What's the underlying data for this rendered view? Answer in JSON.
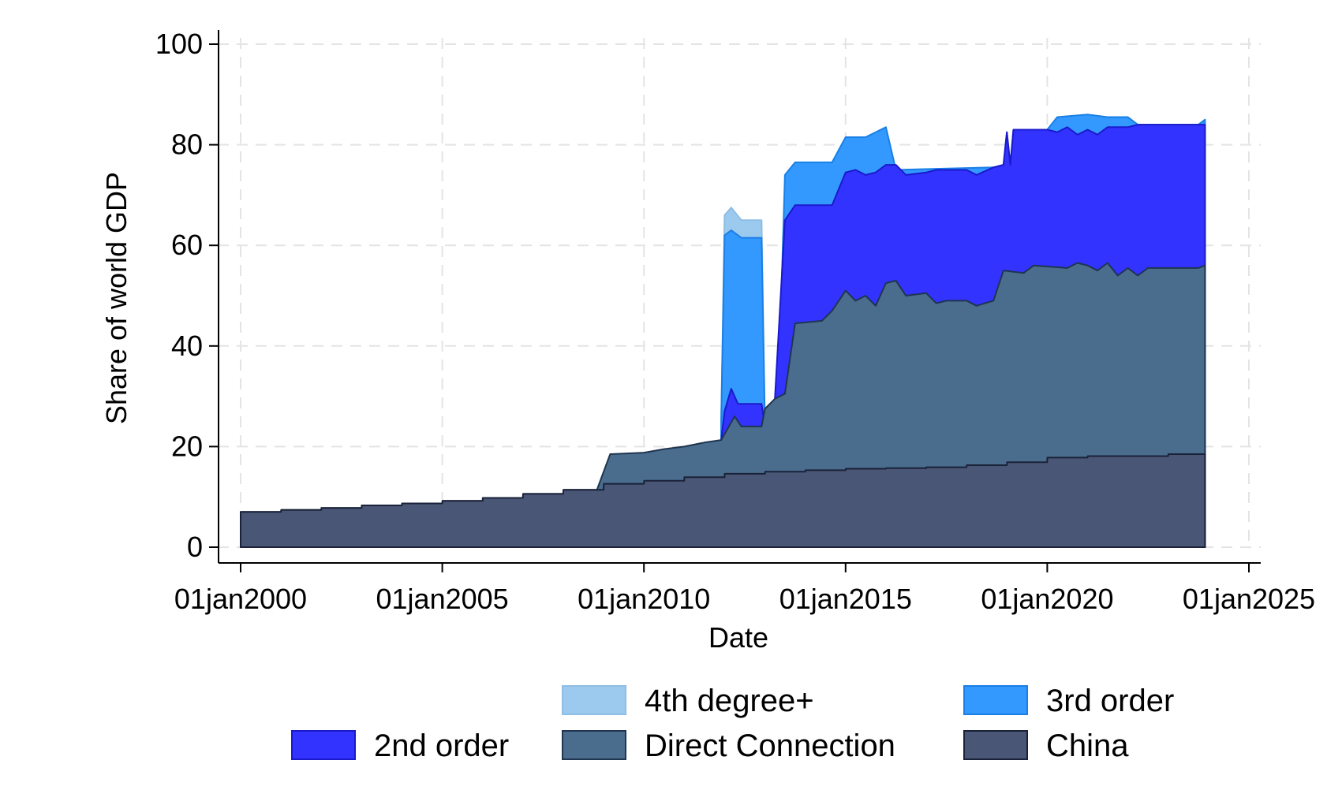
{
  "chart_data": {
    "type": "area",
    "stacked": true,
    "xlabel": "Date",
    "ylabel": "Share of world GDP",
    "xlim": [
      "1999-12-01",
      "2025-01-01"
    ],
    "ylim": [
      0,
      100
    ],
    "x_ticks": [
      "01jan2000",
      "01jan2005",
      "01jan2010",
      "01jan2015",
      "01jan2020",
      "01jan2025"
    ],
    "y_ticks": [
      "0",
      "20",
      "40",
      "60",
      "80",
      "100"
    ],
    "grid": true,
    "legend_position": "bottom",
    "colors": {
      "china": "#4a5675",
      "direct": "#4a6d8e",
      "second": "#3333ff",
      "third": "#3399ff",
      "fourth": "#9ccaee"
    },
    "series": [
      {
        "name": "China",
        "key": "china",
        "points": [
          [
            "2000-01-01",
            7.0
          ],
          [
            "2001-01-01",
            7.0
          ],
          [
            "2001-01-02",
            7.4
          ],
          [
            "2002-01-01",
            7.4
          ],
          [
            "2002-01-02",
            7.8
          ],
          [
            "2003-01-01",
            7.8
          ],
          [
            "2003-01-02",
            8.3
          ],
          [
            "2004-01-01",
            8.3
          ],
          [
            "2004-01-02",
            8.7
          ],
          [
            "2005-01-01",
            8.7
          ],
          [
            "2005-01-02",
            9.2
          ],
          [
            "2006-01-01",
            9.2
          ],
          [
            "2006-01-02",
            9.8
          ],
          [
            "2007-01-01",
            9.8
          ],
          [
            "2007-01-02",
            10.6
          ],
          [
            "2008-01-01",
            10.6
          ],
          [
            "2008-01-02",
            11.4
          ],
          [
            "2009-01-01",
            11.4
          ],
          [
            "2009-01-02",
            12.6
          ],
          [
            "2010-01-01",
            12.6
          ],
          [
            "2010-01-02",
            13.2
          ],
          [
            "2011-01-01",
            13.2
          ],
          [
            "2011-01-02",
            13.9
          ],
          [
            "2012-01-01",
            13.9
          ],
          [
            "2012-01-02",
            14.6
          ],
          [
            "2013-01-01",
            14.6
          ],
          [
            "2013-01-02",
            15.0
          ],
          [
            "2014-01-01",
            15.0
          ],
          [
            "2014-01-02",
            15.3
          ],
          [
            "2015-01-01",
            15.3
          ],
          [
            "2015-01-02",
            15.6
          ],
          [
            "2016-01-01",
            15.6
          ],
          [
            "2016-01-02",
            15.7
          ],
          [
            "2017-01-01",
            15.7
          ],
          [
            "2017-01-02",
            15.9
          ],
          [
            "2018-01-01",
            15.9
          ],
          [
            "2018-01-02",
            16.3
          ],
          [
            "2019-01-01",
            16.3
          ],
          [
            "2019-01-02",
            16.9
          ],
          [
            "2020-01-01",
            16.9
          ],
          [
            "2020-01-02",
            17.8
          ],
          [
            "2021-01-01",
            17.8
          ],
          [
            "2021-01-02",
            18.1
          ],
          [
            "2022-01-01",
            18.1
          ],
          [
            "2022-01-02",
            18.1
          ],
          [
            "2023-01-01",
            18.1
          ],
          [
            "2023-01-02",
            18.5
          ],
          [
            "2023-12-01",
            18.5
          ]
        ]
      },
      {
        "name": "Direct Connection",
        "key": "direct",
        "points": [
          [
            "2000-01-01",
            7.0
          ],
          [
            "2001-01-01",
            7.0
          ],
          [
            "2001-01-02",
            7.4
          ],
          [
            "2002-01-01",
            7.4
          ],
          [
            "2002-01-02",
            7.8
          ],
          [
            "2003-01-01",
            7.8
          ],
          [
            "2003-01-02",
            8.3
          ],
          [
            "2004-01-01",
            8.3
          ],
          [
            "2004-01-02",
            8.7
          ],
          [
            "2005-01-01",
            8.7
          ],
          [
            "2005-01-02",
            9.2
          ],
          [
            "2006-01-01",
            9.2
          ],
          [
            "2006-01-02",
            9.8
          ],
          [
            "2007-01-01",
            9.8
          ],
          [
            "2007-01-02",
            10.6
          ],
          [
            "2008-01-01",
            10.6
          ],
          [
            "2008-01-02",
            11.4
          ],
          [
            "2008-11-01",
            11.4
          ],
          [
            "2009-01-01",
            15.0
          ],
          [
            "2009-03-01",
            18.5
          ],
          [
            "2010-01-01",
            18.8
          ],
          [
            "2010-07-01",
            19.5
          ],
          [
            "2011-01-01",
            20.0
          ],
          [
            "2011-07-01",
            20.8
          ],
          [
            "2011-12-01",
            21.3
          ],
          [
            "2012-04-01",
            26.0
          ],
          [
            "2012-06-01",
            24.0
          ],
          [
            "2012-12-01",
            24.0
          ],
          [
            "2013-01-01",
            27.5
          ],
          [
            "2013-04-01",
            29.5
          ],
          [
            "2013-07-01",
            30.5
          ],
          [
            "2013-10-01",
            44.5
          ],
          [
            "2014-06-01",
            45.0
          ],
          [
            "2014-09-01",
            47.0
          ],
          [
            "2015-01-01",
            51.0
          ],
          [
            "2015-04-01",
            49.0
          ],
          [
            "2015-07-01",
            50.0
          ],
          [
            "2015-10-01",
            48.0
          ],
          [
            "2016-01-01",
            52.5
          ],
          [
            "2016-04-01",
            53.0
          ],
          [
            "2016-07-01",
            50.0
          ],
          [
            "2017-01-01",
            50.5
          ],
          [
            "2017-04-01",
            48.5
          ],
          [
            "2017-07-01",
            49.0
          ],
          [
            "2018-01-01",
            49.0
          ],
          [
            "2018-04-01",
            48.0
          ],
          [
            "2018-09-01",
            49.0
          ],
          [
            "2018-12-01",
            55.0
          ],
          [
            "2019-06-01",
            54.5
          ],
          [
            "2019-09-01",
            56.0
          ],
          [
            "2020-07-01",
            55.5
          ],
          [
            "2020-10-01",
            56.5
          ],
          [
            "2021-01-01",
            56.0
          ],
          [
            "2021-04-01",
            55.0
          ],
          [
            "2021-07-01",
            56.5
          ],
          [
            "2021-10-01",
            54.0
          ],
          [
            "2022-01-01",
            55.5
          ],
          [
            "2022-04-01",
            54.0
          ],
          [
            "2022-07-01",
            55.5
          ],
          [
            "2023-01-01",
            55.5
          ],
          [
            "2023-10-01",
            55.5
          ],
          [
            "2023-12-01",
            56.0
          ]
        ]
      },
      {
        "name": "2nd order",
        "key": "second",
        "points": [
          [
            "2011-12-01",
            21.3
          ],
          [
            "2012-01-01",
            27.0
          ],
          [
            "2012-03-01",
            31.5
          ],
          [
            "2012-05-01",
            28.5
          ],
          [
            "2012-12-01",
            28.5
          ],
          [
            "2013-01-01",
            24.0
          ],
          [
            "2013-04-01",
            29.5
          ],
          [
            "2013-07-01",
            65.0
          ],
          [
            "2013-10-01",
            68.0
          ],
          [
            "2014-09-01",
            68.0
          ],
          [
            "2015-01-01",
            74.5
          ],
          [
            "2015-04-01",
            75.0
          ],
          [
            "2015-07-01",
            74.0
          ],
          [
            "2015-10-01",
            74.5
          ],
          [
            "2016-01-01",
            76.0
          ],
          [
            "2016-04-01",
            76.0
          ],
          [
            "2016-07-01",
            74.0
          ],
          [
            "2017-01-01",
            74.5
          ],
          [
            "2017-04-01",
            75.0
          ],
          [
            "2018-01-01",
            75.0
          ],
          [
            "2018-04-01",
            74.0
          ],
          [
            "2018-09-01",
            75.5
          ],
          [
            "2018-12-01",
            76.0
          ],
          [
            "2019-01-01",
            82.5
          ],
          [
            "2019-02-01",
            76.0
          ],
          [
            "2019-03-01",
            83.0
          ],
          [
            "2020-01-01",
            83.0
          ],
          [
            "2020-04-01",
            82.5
          ],
          [
            "2020-07-01",
            83.5
          ],
          [
            "2020-10-01",
            82.0
          ],
          [
            "2021-01-01",
            83.0
          ],
          [
            "2021-04-01",
            82.0
          ],
          [
            "2021-07-01",
            83.5
          ],
          [
            "2022-01-01",
            83.5
          ],
          [
            "2022-04-01",
            84.0
          ],
          [
            "2023-10-01",
            84.0
          ],
          [
            "2023-12-01",
            84.0
          ]
        ]
      },
      {
        "name": "3rd order",
        "key": "third",
        "points": [
          [
            "2011-12-01",
            25.0
          ],
          [
            "2012-01-01",
            62.0
          ],
          [
            "2012-03-01",
            63.0
          ],
          [
            "2012-06-01",
            61.5
          ],
          [
            "2012-12-01",
            61.5
          ],
          [
            "2013-01-01",
            24.0
          ],
          [
            "2013-05-01",
            29.5
          ],
          [
            "2013-07-01",
            74.0
          ],
          [
            "2013-10-01",
            76.5
          ],
          [
            "2014-09-01",
            76.5
          ],
          [
            "2015-01-01",
            81.5
          ],
          [
            "2015-07-01",
            81.5
          ],
          [
            "2016-01-01",
            83.5
          ],
          [
            "2016-04-01",
            75.0
          ],
          [
            "2018-09-01",
            75.5
          ],
          [
            "2018-12-01",
            76.0
          ],
          [
            "2019-01-01",
            82.5
          ],
          [
            "2019-02-01",
            76.0
          ],
          [
            "2019-03-01",
            83.0
          ],
          [
            "2020-01-01",
            83.0
          ],
          [
            "2020-04-01",
            85.5
          ],
          [
            "2021-01-01",
            86.0
          ],
          [
            "2021-07-01",
            85.5
          ],
          [
            "2022-01-01",
            85.5
          ],
          [
            "2022-04-01",
            84.0
          ],
          [
            "2023-10-01",
            84.0
          ],
          [
            "2023-12-01",
            85.0
          ]
        ]
      },
      {
        "name": "4th degree+",
        "key": "fourth",
        "points": [
          [
            "2011-12-01",
            25.0
          ],
          [
            "2012-01-01",
            66.0
          ],
          [
            "2012-03-01",
            67.5
          ],
          [
            "2012-06-01",
            65.0
          ],
          [
            "2012-12-01",
            65.0
          ],
          [
            "2013-01-01",
            24.0
          ]
        ]
      }
    ],
    "legend": [
      {
        "key": "fourth",
        "label": "4th degree+"
      },
      {
        "key": "third",
        "label": "3rd order"
      },
      {
        "key": "second",
        "label": "2nd order"
      },
      {
        "key": "direct",
        "label": "Direct Connection"
      },
      {
        "key": "china",
        "label": "China"
      }
    ]
  }
}
